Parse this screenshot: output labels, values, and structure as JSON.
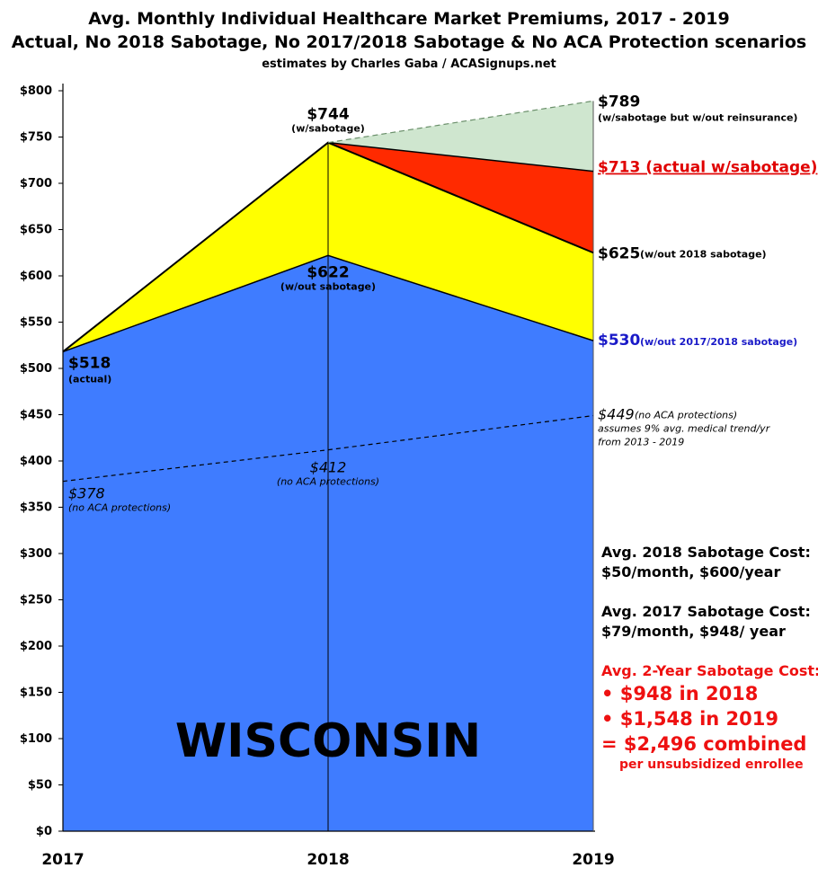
{
  "chart_data": {
    "type": "area",
    "title": "Avg. Monthly Individual Healthcare Market Premiums, 2017 - 2019",
    "subtitle": "Actual, No 2018 Sabotage, No 2017/2018 Sabotage & No ACA Protection scenarios",
    "credit": "estimates by Charles Gaba / ACASignups.net",
    "state_label": "WISCONSIN",
    "x": [
      "2017",
      "2018",
      "2019"
    ],
    "ylim": [
      0,
      800
    ],
    "yticks": [
      "$0",
      "$50",
      "$100",
      "$150",
      "$200",
      "$250",
      "$300",
      "$350",
      "$400",
      "$450",
      "$500",
      "$550",
      "$600",
      "$650",
      "$700",
      "$750",
      "$800"
    ],
    "ytick_values": [
      0,
      50,
      100,
      150,
      200,
      250,
      300,
      350,
      400,
      450,
      500,
      550,
      600,
      650,
      700,
      750,
      800
    ],
    "series": [
      {
        "name": "w/sabotage but w/out reinsurance",
        "values": [
          null,
          744,
          789
        ],
        "color": "#cfe6cf",
        "style": "dashed"
      },
      {
        "name": "actual w/sabotage",
        "values": [
          518,
          744,
          713
        ],
        "color": "#ff2a00"
      },
      {
        "name": "w/out 2018 sabotage",
        "values": [
          518,
          744,
          625
        ],
        "color": "#ffff00"
      },
      {
        "name": "w/out 2017/2018 sabotage",
        "values": [
          518,
          622,
          530
        ],
        "color": "#3f7cff"
      },
      {
        "name": "no ACA protections",
        "values": [
          378,
          412,
          449
        ],
        "style": "dashed"
      }
    ],
    "annotations": {
      "a2017_val": "$518",
      "a2017_sub": "(actual)",
      "a2018_top_val": "$744",
      "a2018_top_sub": "(w/sabotage)",
      "a2018_mid_val": "$622",
      "a2018_mid_sub": "(w/out sabotage)",
      "a2019_789_val": "$789",
      "a2019_789_sub": "(w/sabotage but w/out reinsurance)",
      "a2019_713": "$713 (actual w/sabotage)",
      "a2019_625_val": "$625",
      "a2019_625_sub": "(w/out 2018 sabotage)",
      "a2019_530_val": "$530",
      "a2019_530_sub": "(w/out 2017/2018 sabotage)",
      "noaca_2017_val": "$378",
      "noaca_2017_sub": "(no ACA protections)",
      "noaca_2018_val": "$412",
      "noaca_2018_sub": "(no ACA protections)",
      "noaca_2019_val": "$449",
      "noaca_2019_sub": "(no ACA protections)",
      "noaca_2019_note1": "assumes 9% avg. medical trend/yr",
      "noaca_2019_note2": "from 2013 - 2019"
    },
    "cost_notes": {
      "s2018_title": "Avg. 2018 Sabotage Cost:",
      "s2018_value": "$50/month, $600/year",
      "s2017_title": "Avg. 2017 Sabotage Cost:",
      "s2017_value": "$79/month, $948/ year",
      "two_year_title": "Avg. 2-Year Sabotage Cost:",
      "two_year_line1": "• $948 in 2018",
      "two_year_line2": "• $1,548 in 2019",
      "two_year_line3": "= $2,496 combined",
      "two_year_line4": "per unsubsidized enrollee"
    }
  }
}
